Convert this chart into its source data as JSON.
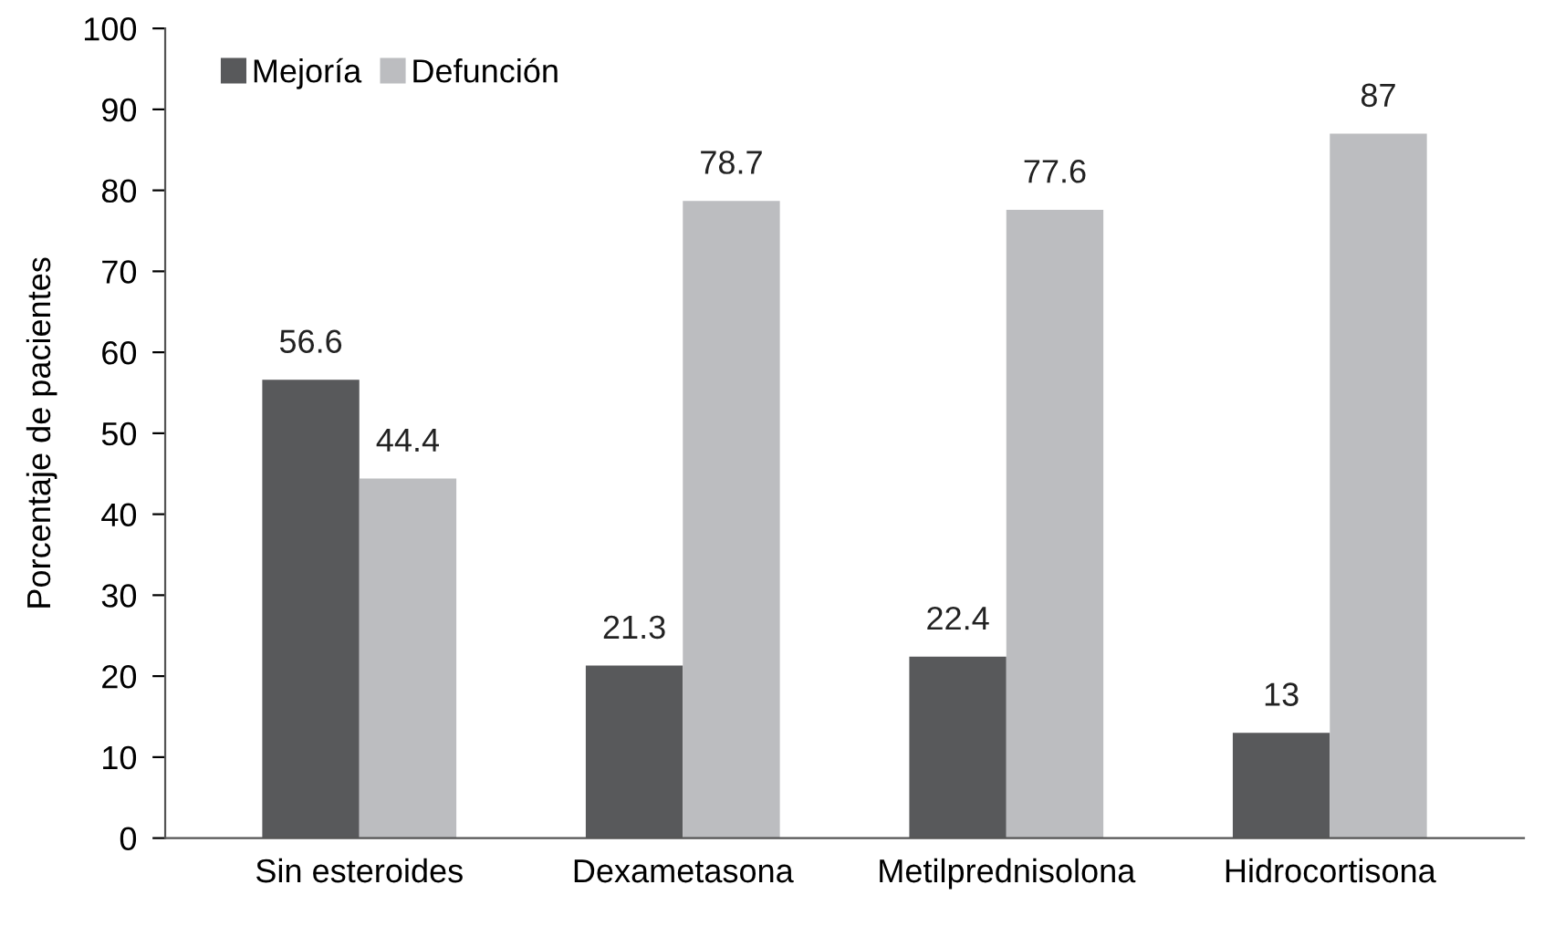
{
  "chart_data": {
    "type": "bar",
    "ylabel": "Porcentaje de pacientes",
    "categories": [
      "Sin esteroides",
      "Dexametasona",
      "Metilprednisolona",
      "Hidrocortisona"
    ],
    "series": [
      {
        "name": "Mejoría",
        "color": "#58595b",
        "values": [
          56.6,
          21.3,
          22.4,
          13
        ]
      },
      {
        "name": "Defunción",
        "color": "#bcbdc0",
        "values": [
          44.4,
          78.7,
          77.6,
          87
        ]
      }
    ],
    "ylim": [
      0,
      100
    ],
    "yticks": [
      0,
      10,
      20,
      30,
      40,
      50,
      60,
      70,
      80,
      90,
      100
    ],
    "grid": false,
    "legend": "top left",
    "data_labels": true
  }
}
